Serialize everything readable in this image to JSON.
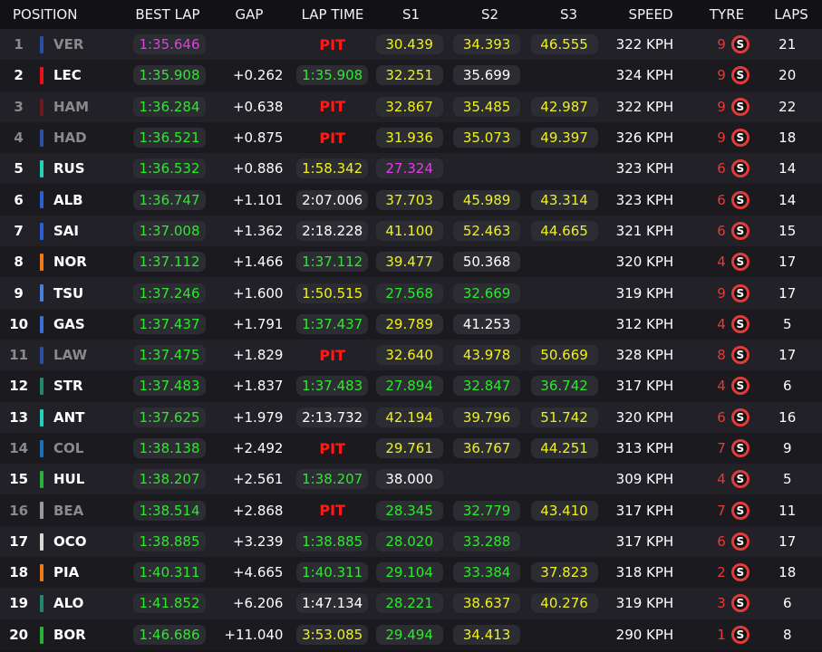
{
  "headers": {
    "position": "POSITION",
    "best_lap": "BEST LAP",
    "gap": "GAP",
    "lap_time": "LAP TIME",
    "s1": "S1",
    "s2": "S2",
    "s3": "S3",
    "speed": "SPEED",
    "tyre": "TYRE",
    "laps": "LAPS"
  },
  "colors": {
    "green": "#2ee82e",
    "yellow": "#f0f020",
    "purple": "#e040e0",
    "white": "#ffffff",
    "pit": "#ff1a1a",
    "tyre_soft": "#e43a3a"
  },
  "rows": [
    {
      "pos": "1",
      "team_color": "#2a4fa6",
      "driver": "VER",
      "best": "1:35.646",
      "best_c": "purple",
      "gap": "",
      "lap": "PIT",
      "lap_c": "pit",
      "s1": "30.439",
      "s1_c": "yellow",
      "s2": "34.393",
      "s2_c": "yellow",
      "s3": "46.555",
      "s3_c": "yellow",
      "speed": "322 KPH",
      "tyre_laps": "9",
      "tyre": "S",
      "laps": "21",
      "dim": true
    },
    {
      "pos": "2",
      "team_color": "#e8111e",
      "driver": "LEC",
      "best": "1:35.908",
      "best_c": "green",
      "gap": "+0.262",
      "lap": "1:35.908",
      "lap_c": "green",
      "s1": "32.251",
      "s1_c": "yellow",
      "s2": "35.699",
      "s2_c": "white",
      "s3": "",
      "s3_c": "white",
      "speed": "324 KPH",
      "tyre_laps": "9",
      "tyre": "S",
      "laps": "20",
      "dim": false
    },
    {
      "pos": "3",
      "team_color": "#6b1a1e",
      "driver": "HAM",
      "best": "1:36.284",
      "best_c": "green",
      "gap": "+0.638",
      "lap": "PIT",
      "lap_c": "pit",
      "s1": "32.867",
      "s1_c": "yellow",
      "s2": "35.485",
      "s2_c": "yellow",
      "s3": "42.987",
      "s3_c": "yellow",
      "speed": "322 KPH",
      "tyre_laps": "9",
      "tyre": "S",
      "laps": "22",
      "dim": true
    },
    {
      "pos": "4",
      "team_color": "#2a4fa6",
      "driver": "HAD",
      "best": "1:36.521",
      "best_c": "green",
      "gap": "+0.875",
      "lap": "PIT",
      "lap_c": "pit",
      "s1": "31.936",
      "s1_c": "yellow",
      "s2": "35.073",
      "s2_c": "yellow",
      "s3": "49.397",
      "s3_c": "yellow",
      "speed": "326 KPH",
      "tyre_laps": "9",
      "tyre": "S",
      "laps": "18",
      "dim": true
    },
    {
      "pos": "5",
      "team_color": "#22d3b7",
      "driver": "RUS",
      "best": "1:36.532",
      "best_c": "green",
      "gap": "+0.886",
      "lap": "1:58.342",
      "lap_c": "yellow",
      "s1": "27.324",
      "s1_c": "purple",
      "s2": "",
      "s2_c": "white",
      "s3": "",
      "s3_c": "white",
      "speed": "323 KPH",
      "tyre_laps": "6",
      "tyre": "S",
      "laps": "14",
      "dim": false
    },
    {
      "pos": "6",
      "team_color": "#2a5fd6",
      "driver": "ALB",
      "best": "1:36.747",
      "best_c": "green",
      "gap": "+1.101",
      "lap": "2:07.006",
      "lap_c": "white",
      "s1": "37.703",
      "s1_c": "yellow",
      "s2": "45.989",
      "s2_c": "yellow",
      "s3": "43.314",
      "s3_c": "yellow",
      "speed": "323 KPH",
      "tyre_laps": "6",
      "tyre": "S",
      "laps": "14",
      "dim": false
    },
    {
      "pos": "7",
      "team_color": "#2a5fd6",
      "driver": "SAI",
      "best": "1:37.008",
      "best_c": "green",
      "gap": "+1.362",
      "lap": "2:18.228",
      "lap_c": "white",
      "s1": "41.100",
      "s1_c": "yellow",
      "s2": "52.463",
      "s2_c": "yellow",
      "s3": "44.665",
      "s3_c": "yellow",
      "speed": "321 KPH",
      "tyre_laps": "6",
      "tyre": "S",
      "laps": "15",
      "dim": false
    },
    {
      "pos": "8",
      "team_color": "#f07a16",
      "driver": "NOR",
      "best": "1:37.112",
      "best_c": "green",
      "gap": "+1.466",
      "lap": "1:37.112",
      "lap_c": "green",
      "s1": "39.477",
      "s1_c": "yellow",
      "s2": "50.368",
      "s2_c": "white",
      "s3": "",
      "s3_c": "white",
      "speed": "320 KPH",
      "tyre_laps": "4",
      "tyre": "S",
      "laps": "17",
      "dim": false
    },
    {
      "pos": "9",
      "team_color": "#4a7fe0",
      "driver": "TSU",
      "best": "1:37.246",
      "best_c": "green",
      "gap": "+1.600",
      "lap": "1:50.515",
      "lap_c": "yellow",
      "s1": "27.568",
      "s1_c": "green",
      "s2": "32.669",
      "s2_c": "green",
      "s3": "",
      "s3_c": "white",
      "speed": "319 KPH",
      "tyre_laps": "9",
      "tyre": "S",
      "laps": "17",
      "dim": false
    },
    {
      "pos": "10",
      "team_color": "#3a6ed8",
      "driver": "GAS",
      "best": "1:37.437",
      "best_c": "green",
      "gap": "+1.791",
      "lap": "1:37.437",
      "lap_c": "green",
      "s1": "29.789",
      "s1_c": "yellow",
      "s2": "41.253",
      "s2_c": "white",
      "s3": "",
      "s3_c": "white",
      "speed": "312 KPH",
      "tyre_laps": "4",
      "tyre": "S",
      "laps": "5",
      "dim": false
    },
    {
      "pos": "11",
      "team_color": "#2a4fa6",
      "driver": "LAW",
      "best": "1:37.475",
      "best_c": "green",
      "gap": "+1.829",
      "lap": "PIT",
      "lap_c": "pit",
      "s1": "32.640",
      "s1_c": "yellow",
      "s2": "43.978",
      "s2_c": "yellow",
      "s3": "50.669",
      "s3_c": "yellow",
      "speed": "328 KPH",
      "tyre_laps": "8",
      "tyre": "S",
      "laps": "17",
      "dim": true
    },
    {
      "pos": "12",
      "team_color": "#1f8a6a",
      "driver": "STR",
      "best": "1:37.483",
      "best_c": "green",
      "gap": "+1.837",
      "lap": "1:37.483",
      "lap_c": "green",
      "s1": "27.894",
      "s1_c": "green",
      "s2": "32.847",
      "s2_c": "green",
      "s3": "36.742",
      "s3_c": "green",
      "speed": "317 KPH",
      "tyre_laps": "4",
      "tyre": "S",
      "laps": "6",
      "dim": false
    },
    {
      "pos": "13",
      "team_color": "#22d3b7",
      "driver": "ANT",
      "best": "1:37.625",
      "best_c": "green",
      "gap": "+1.979",
      "lap": "2:13.732",
      "lap_c": "white",
      "s1": "42.194",
      "s1_c": "yellow",
      "s2": "39.796",
      "s2_c": "yellow",
      "s3": "51.742",
      "s3_c": "yellow",
      "speed": "320 KPH",
      "tyre_laps": "6",
      "tyre": "S",
      "laps": "16",
      "dim": false
    },
    {
      "pos": "14",
      "team_color": "#1f6fb5",
      "driver": "COL",
      "best": "1:38.138",
      "best_c": "green",
      "gap": "+2.492",
      "lap": "PIT",
      "lap_c": "pit",
      "s1": "29.761",
      "s1_c": "yellow",
      "s2": "36.767",
      "s2_c": "yellow",
      "s3": "44.251",
      "s3_c": "yellow",
      "speed": "313 KPH",
      "tyre_laps": "7",
      "tyre": "S",
      "laps": "9",
      "dim": true
    },
    {
      "pos": "15",
      "team_color": "#2bb03a",
      "driver": "HUL",
      "best": "1:38.207",
      "best_c": "green",
      "gap": "+2.561",
      "lap": "1:38.207",
      "lap_c": "green",
      "s1": "38.000",
      "s1_c": "white",
      "s2": "",
      "s2_c": "white",
      "s3": "",
      "s3_c": "white",
      "speed": "309 KPH",
      "tyre_laps": "4",
      "tyre": "S",
      "laps": "5",
      "dim": false
    },
    {
      "pos": "16",
      "team_color": "#9a9a9a",
      "driver": "BEA",
      "best": "1:38.514",
      "best_c": "green",
      "gap": "+2.868",
      "lap": "PIT",
      "lap_c": "pit",
      "s1": "28.345",
      "s1_c": "green",
      "s2": "32.779",
      "s2_c": "green",
      "s3": "43.410",
      "s3_c": "yellow",
      "speed": "317 KPH",
      "tyre_laps": "7",
      "tyre": "S",
      "laps": "11",
      "dim": true
    },
    {
      "pos": "17",
      "team_color": "#d8d8d8",
      "driver": "OCO",
      "best": "1:38.885",
      "best_c": "green",
      "gap": "+3.239",
      "lap": "1:38.885",
      "lap_c": "green",
      "s1": "28.020",
      "s1_c": "green",
      "s2": "33.288",
      "s2_c": "green",
      "s3": "",
      "s3_c": "white",
      "speed": "317 KPH",
      "tyre_laps": "6",
      "tyre": "S",
      "laps": "17",
      "dim": false
    },
    {
      "pos": "18",
      "team_color": "#f07a16",
      "driver": "PIA",
      "best": "1:40.311",
      "best_c": "green",
      "gap": "+4.665",
      "lap": "1:40.311",
      "lap_c": "green",
      "s1": "29.104",
      "s1_c": "green",
      "s2": "33.384",
      "s2_c": "green",
      "s3": "37.823",
      "s3_c": "yellow",
      "speed": "318 KPH",
      "tyre_laps": "2",
      "tyre": "S",
      "laps": "18",
      "dim": false
    },
    {
      "pos": "19",
      "team_color": "#1f8a6a",
      "driver": "ALO",
      "best": "1:41.852",
      "best_c": "green",
      "gap": "+6.206",
      "lap": "1:47.134",
      "lap_c": "white",
      "s1": "28.221",
      "s1_c": "green",
      "s2": "38.637",
      "s2_c": "yellow",
      "s3": "40.276",
      "s3_c": "yellow",
      "speed": "319 KPH",
      "tyre_laps": "3",
      "tyre": "S",
      "laps": "6",
      "dim": false
    },
    {
      "pos": "20",
      "team_color": "#2bb03a",
      "driver": "BOR",
      "best": "1:46.686",
      "best_c": "green",
      "gap": "+11.040",
      "lap": "3:53.085",
      "lap_c": "yellow",
      "s1": "29.494",
      "s1_c": "green",
      "s2": "34.413",
      "s2_c": "yellow",
      "s3": "",
      "s3_c": "white",
      "speed": "290 KPH",
      "tyre_laps": "1",
      "tyre": "S",
      "laps": "8",
      "dim": false
    }
  ]
}
